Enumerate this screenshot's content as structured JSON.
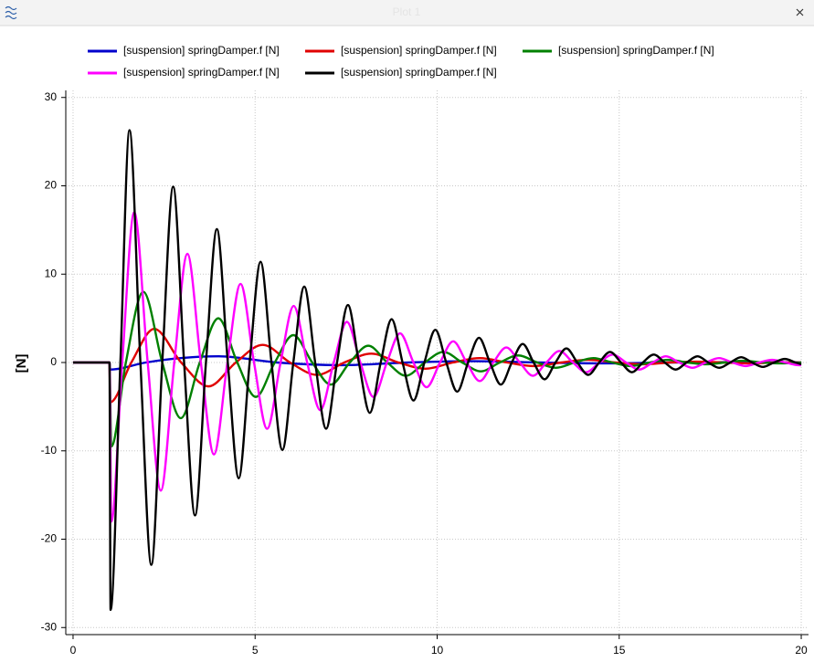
{
  "chart_data": {
    "type": "line",
    "title": "Plot 1",
    "ylabel": "[N]",
    "xlim": [
      -0.2,
      20.2
    ],
    "ylim": [
      -30.8,
      30.8
    ],
    "xticks": [
      0,
      5,
      10,
      15,
      20
    ],
    "yticks": [
      -30,
      -20,
      -10,
      0,
      10,
      20,
      30
    ],
    "grid": true,
    "legend_position": "top",
    "series": [
      {
        "name": "[suspension] springDamper.f [N]",
        "color": "#0000cc",
        "x": [
          0,
          1,
          1.02,
          2.0,
          4.0,
          5.6,
          7.4,
          9.2,
          11.0,
          12.8,
          14.6,
          16.4,
          18.2,
          20
        ],
        "values": [
          0,
          0,
          -0.8,
          0,
          0.7,
          0,
          -0.3,
          0,
          0.15,
          0,
          -0.1,
          0,
          0.05,
          0
        ]
      },
      {
        "name": "[suspension] springDamper.f [N]",
        "color": "#e00000",
        "x": [
          0,
          1,
          1.02,
          1.6,
          2.23,
          2.97,
          3.72,
          4.47,
          5.21,
          5.96,
          6.7,
          7.45,
          8.19,
          8.94,
          9.68,
          10.43,
          11.17,
          11.92,
          12.66,
          13.41,
          14.15,
          14.9,
          15.64,
          16.39,
          17.13,
          17.88,
          18.62,
          19.37,
          20
        ],
        "values": [
          0,
          0,
          -4.5,
          0,
          3.8,
          0,
          -2.7,
          0,
          2.0,
          0,
          -1.4,
          0,
          1.0,
          0,
          -0.7,
          0,
          0.5,
          0,
          -0.4,
          0,
          0.3,
          0,
          -0.2,
          0,
          0.1,
          0,
          -0.1,
          0,
          0
        ]
      },
      {
        "name": "[suspension] springDamper.f [N]",
        "color": "#008000",
        "x": [
          0,
          1,
          1.05,
          1.45,
          1.93,
          2.45,
          2.96,
          3.48,
          3.99,
          4.51,
          5.02,
          5.54,
          6.05,
          6.57,
          7.08,
          7.6,
          8.11,
          8.63,
          9.14,
          9.66,
          10.17,
          10.69,
          11.2,
          11.72,
          12.23,
          12.75,
          13.26,
          13.78,
          14.29,
          14.81,
          15.32,
          15.84,
          16.35,
          16.87,
          17.38,
          17.9,
          18.41,
          18.93,
          19.44,
          20
        ],
        "values": [
          0,
          0,
          -9.5,
          0,
          8,
          0,
          -6.3,
          0,
          5.0,
          0,
          -3.9,
          0,
          3.1,
          0,
          -2.5,
          0,
          1.9,
          0,
          -1.5,
          0,
          1.2,
          0,
          -1.0,
          0,
          0.8,
          0,
          -0.6,
          0,
          0.5,
          0,
          -0.4,
          0,
          0.3,
          0,
          -0.2,
          0,
          0.2,
          0,
          -0.1,
          0
        ]
      },
      {
        "name": "[suspension] springDamper.f [N]",
        "color": "#ff00ff",
        "x": [
          0,
          1,
          1.05,
          1.35,
          1.68,
          2.05,
          2.41,
          2.78,
          3.14,
          3.51,
          3.87,
          4.24,
          4.6,
          4.97,
          5.33,
          5.7,
          6.06,
          6.43,
          6.79,
          7.16,
          7.52,
          7.89,
          8.25,
          8.62,
          8.98,
          9.35,
          9.71,
          10.08,
          10.44,
          10.81,
          11.17,
          11.54,
          11.9,
          12.27,
          12.63,
          13.0,
          13.36,
          13.73,
          14.09,
          14.46,
          14.82,
          15.19,
          15.55,
          15.92,
          16.28,
          16.65,
          17.01,
          17.38,
          17.74,
          18.11,
          18.47,
          18.84,
          19.2,
          19.57,
          19.93,
          20
        ],
        "values": [
          0,
          0,
          -18,
          0,
          17,
          0,
          -14.5,
          0,
          12.3,
          0,
          -10.4,
          0,
          8.9,
          0,
          -7.5,
          0,
          6.4,
          0,
          -5.4,
          0,
          4.6,
          0,
          -3.9,
          0,
          3.3,
          0,
          -2.8,
          0,
          2.4,
          0,
          -2.1,
          0,
          1.7,
          0,
          -1.5,
          0,
          1.3,
          0,
          -1.1,
          0,
          0.9,
          0,
          -0.8,
          0,
          0.7,
          0,
          -0.6,
          0,
          0.5,
          0,
          -0.4,
          0,
          0.3,
          0,
          -0.3,
          -0.3
        ]
      },
      {
        "name": "[suspension] springDamper.f [N]",
        "color": "#000000",
        "x": [
          0,
          1,
          1.03,
          1.3,
          1.55,
          1.85,
          2.15,
          2.45,
          2.75,
          3.05,
          3.35,
          3.65,
          3.95,
          4.25,
          4.55,
          4.85,
          5.15,
          5.45,
          5.75,
          6.05,
          6.35,
          6.65,
          6.95,
          7.25,
          7.55,
          7.85,
          8.15,
          8.45,
          8.75,
          9.05,
          9.35,
          9.65,
          9.95,
          10.25,
          10.55,
          10.85,
          11.15,
          11.45,
          11.75,
          12.05,
          12.35,
          12.65,
          12.95,
          13.25,
          13.55,
          13.85,
          14.15,
          14.45,
          14.75,
          15.05,
          15.35,
          15.65,
          15.95,
          16.25,
          16.55,
          16.85,
          17.15,
          17.45,
          17.75,
          18.05,
          18.35,
          18.65,
          18.95,
          19.25,
          19.55,
          19.85,
          20
        ],
        "values": [
          0,
          0,
          -28,
          0,
          26.3,
          0,
          -22.9,
          0,
          19.9,
          0,
          -17.3,
          0,
          15.1,
          0,
          -13.1,
          0,
          11.4,
          0,
          -9.9,
          0,
          8.6,
          0,
          -7.5,
          0,
          6.5,
          0,
          -5.7,
          0,
          4.9,
          0,
          -4.3,
          0,
          3.7,
          0,
          -3.3,
          0,
          2.8,
          0,
          -2.5,
          0,
          2.1,
          0,
          -1.9,
          0,
          1.6,
          0,
          -1.4,
          0,
          1.2,
          0,
          -1.1,
          0,
          0.9,
          0,
          -0.8,
          0,
          0.7,
          0,
          -0.6,
          0,
          0.6,
          0,
          -0.5,
          0,
          0.4,
          0,
          -0.2
        ]
      }
    ]
  }
}
